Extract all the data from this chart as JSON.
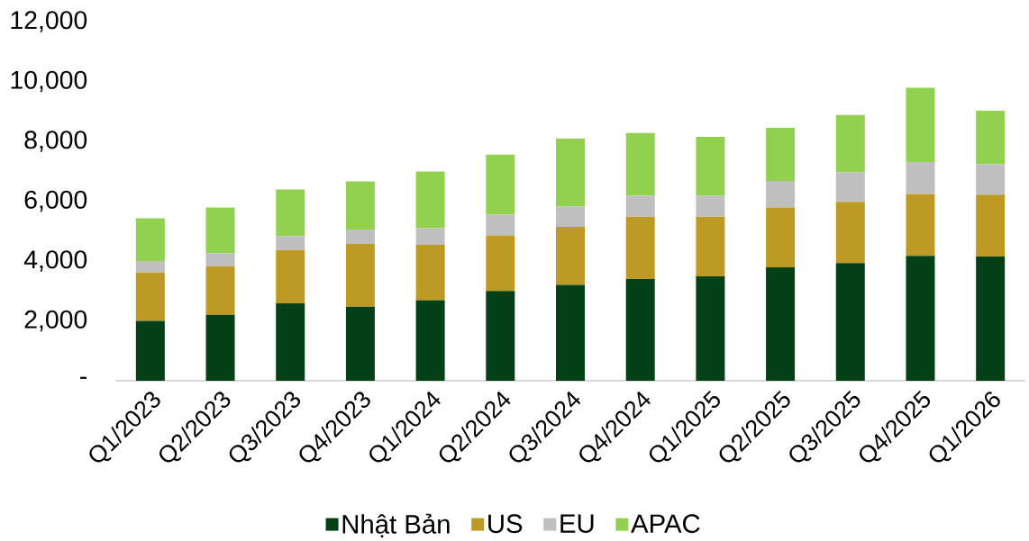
{
  "chart_data": {
    "type": "bar",
    "stacked": true,
    "categories": [
      "Q1/2023",
      "Q2/2023",
      "Q3/2023",
      "Q4/2023",
      "Q1/2024",
      "Q2/2024",
      "Q3/2024",
      "Q4/2024",
      "Q1/2025",
      "Q2/2025",
      "Q3/2025",
      "Q4/2025",
      "Q1/2026"
    ],
    "series": [
      {
        "name": "Nhật Bản",
        "color": "#034016",
        "values": [
          2000,
          2200,
          2590,
          2470,
          2690,
          3000,
          3200,
          3400,
          3490,
          3790,
          3930,
          4170,
          4150
        ]
      },
      {
        "name": "US",
        "color": "#bd9a24",
        "values": [
          1620,
          1630,
          1780,
          2100,
          1850,
          1860,
          1940,
          2080,
          1990,
          2000,
          2050,
          2070,
          2070
        ]
      },
      {
        "name": "EU",
        "color": "#bfbfbf",
        "values": [
          380,
          430,
          460,
          480,
          560,
          700,
          690,
          710,
          700,
          890,
          980,
          1070,
          1010
        ]
      },
      {
        "name": "APAC",
        "color": "#92d050",
        "values": [
          1430,
          1530,
          1560,
          1610,
          1890,
          2000,
          2260,
          2090,
          1970,
          1770,
          1920,
          2480,
          1790
        ]
      }
    ],
    "ylim": [
      0,
      12000
    ],
    "yticks": [
      {
        "value": 0,
        "label": "-"
      },
      {
        "value": 2000,
        "label": "2,000"
      },
      {
        "value": 4000,
        "label": "4,000"
      },
      {
        "value": 6000,
        "label": "6,000"
      },
      {
        "value": 8000,
        "label": "8,000"
      },
      {
        "value": 10000,
        "label": "10,000"
      },
      {
        "value": 12000,
        "label": "12,000"
      }
    ],
    "legend": "bottom"
  }
}
